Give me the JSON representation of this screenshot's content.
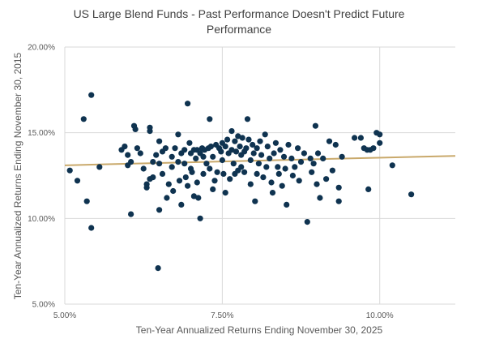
{
  "chart_data": {
    "type": "scatter",
    "title": "US Large Blend Funds - Past Performance Doesn't Predict Future Performance",
    "title_lines": [
      "US Large Blend Funds - Past Performance Doesn't Predict Future",
      "Performance"
    ],
    "xlabel": "Ten-Year Annualized Returns Ending November 30, 2025",
    "ylabel": "Ten-Year Annualized Returns Ending November 30, 2015",
    "xlim": [
      5.0,
      11.2
    ],
    "ylim": [
      5.0,
      20.0
    ],
    "x_ticks": [
      5.0,
      7.5,
      10.0
    ],
    "x_tick_labels": [
      "5.00%",
      "7.50%",
      "10.00%"
    ],
    "y_ticks": [
      5.0,
      10.0,
      15.0,
      20.0
    ],
    "y_tick_labels": [
      "5.00%",
      "10.00%",
      "15.00%",
      "20.00%"
    ],
    "grid": "vertical and horizontal",
    "point_color": "#0f3350",
    "trendline": {
      "type": "linear",
      "color": "#c9a96b",
      "x": [
        5.0,
        11.2
      ],
      "y": [
        13.1,
        13.65
      ]
    },
    "points": [
      [
        5.08,
        12.8
      ],
      [
        5.3,
        15.8
      ],
      [
        5.35,
        11.0
      ],
      [
        5.42,
        9.45
      ],
      [
        5.42,
        17.2
      ],
      [
        5.55,
        13.0
      ],
      [
        5.2,
        12.2
      ],
      [
        5.9,
        14.0
      ],
      [
        5.95,
        14.2
      ],
      [
        6.0,
        13.7
      ],
      [
        6.0,
        13.1
      ],
      [
        6.05,
        13.3
      ],
      [
        6.05,
        10.25
      ],
      [
        6.1,
        15.4
      ],
      [
        6.12,
        15.2
      ],
      [
        6.15,
        14.1
      ],
      [
        6.2,
        13.8
      ],
      [
        6.25,
        12.9
      ],
      [
        6.3,
        12.0
      ],
      [
        6.3,
        11.8
      ],
      [
        6.35,
        15.1
      ],
      [
        6.35,
        15.3
      ],
      [
        6.35,
        12.3
      ],
      [
        6.4,
        13.3
      ],
      [
        6.4,
        12.4
      ],
      [
        6.45,
        13.7
      ],
      [
        6.5,
        14.5
      ],
      [
        6.5,
        13.2
      ],
      [
        6.5,
        10.5
      ],
      [
        6.48,
        7.1
      ],
      [
        6.55,
        12.6
      ],
      [
        6.55,
        13.9
      ],
      [
        6.6,
        14.1
      ],
      [
        6.62,
        11.2
      ],
      [
        6.65,
        12.0
      ],
      [
        6.7,
        13.6
      ],
      [
        6.7,
        13.0
      ],
      [
        6.72,
        11.6
      ],
      [
        6.75,
        14.1
      ],
      [
        6.8,
        14.9
      ],
      [
        6.8,
        13.3
      ],
      [
        6.82,
        12.2
      ],
      [
        6.85,
        10.8
      ],
      [
        6.85,
        13.8
      ],
      [
        6.9,
        14.0
      ],
      [
        6.9,
        13.2
      ],
      [
        6.92,
        12.4
      ],
      [
        6.95,
        16.7
      ],
      [
        6.95,
        11.9
      ],
      [
        6.98,
        14.4
      ],
      [
        7.0,
        13.8
      ],
      [
        7.0,
        12.9
      ],
      [
        7.02,
        12.7
      ],
      [
        7.05,
        14.0
      ],
      [
        7.05,
        11.3
      ],
      [
        7.08,
        13.5
      ],
      [
        7.1,
        14.0
      ],
      [
        7.1,
        12.1
      ],
      [
        7.12,
        11.2
      ],
      [
        7.15,
        13.8
      ],
      [
        7.15,
        10.0
      ],
      [
        7.18,
        14.1
      ],
      [
        7.2,
        13.6
      ],
      [
        7.2,
        12.6
      ],
      [
        7.22,
        14.0
      ],
      [
        7.25,
        13.2
      ],
      [
        7.28,
        14.1
      ],
      [
        7.3,
        12.9
      ],
      [
        7.3,
        15.8
      ],
      [
        7.32,
        14.2
      ],
      [
        7.35,
        11.7
      ],
      [
        7.35,
        13.6
      ],
      [
        7.38,
        12.2
      ],
      [
        7.4,
        14.3
      ],
      [
        7.42,
        12.7
      ],
      [
        7.45,
        14.1
      ],
      [
        7.48,
        13.9
      ],
      [
        7.5,
        14.4
      ],
      [
        7.5,
        13.4
      ],
      [
        7.52,
        12.6
      ],
      [
        7.55,
        14.2
      ],
      [
        7.55,
        11.5
      ],
      [
        7.58,
        14.6
      ],
      [
        7.6,
        13.8
      ],
      [
        7.62,
        12.3
      ],
      [
        7.65,
        14.0
      ],
      [
        7.65,
        15.1
      ],
      [
        7.68,
        13.2
      ],
      [
        7.7,
        14.5
      ],
      [
        7.7,
        12.6
      ],
      [
        7.72,
        13.9
      ],
      [
        7.75,
        14.8
      ],
      [
        7.75,
        12.8
      ],
      [
        7.78,
        14.2
      ],
      [
        7.8,
        13.7
      ],
      [
        7.8,
        13.0
      ],
      [
        7.82,
        14.7
      ],
      [
        7.85,
        13.9
      ],
      [
        7.85,
        12.7
      ],
      [
        7.88,
        14.1
      ],
      [
        7.9,
        15.8
      ],
      [
        7.92,
        14.6
      ],
      [
        7.95,
        13.4
      ],
      [
        7.95,
        12.0
      ],
      [
        7.98,
        14.3
      ],
      [
        8.0,
        13.8
      ],
      [
        8.02,
        11.0
      ],
      [
        8.05,
        14.1
      ],
      [
        8.05,
        12.6
      ],
      [
        8.08,
        13.2
      ],
      [
        8.1,
        14.5
      ],
      [
        8.12,
        13.7
      ],
      [
        8.15,
        12.4
      ],
      [
        8.18,
        14.9
      ],
      [
        8.2,
        13.0
      ],
      [
        8.22,
        14.2
      ],
      [
        8.25,
        13.5
      ],
      [
        8.28,
        12.1
      ],
      [
        8.3,
        11.5
      ],
      [
        8.32,
        13.8
      ],
      [
        8.35,
        14.4
      ],
      [
        8.38,
        13.0
      ],
      [
        8.4,
        12.6
      ],
      [
        8.42,
        14.0
      ],
      [
        8.45,
        11.9
      ],
      [
        8.48,
        13.6
      ],
      [
        8.5,
        12.9
      ],
      [
        8.52,
        10.8
      ],
      [
        8.55,
        14.3
      ],
      [
        8.6,
        13.5
      ],
      [
        8.62,
        12.5
      ],
      [
        8.65,
        13.0
      ],
      [
        8.7,
        14.1
      ],
      [
        8.72,
        12.2
      ],
      [
        8.75,
        13.3
      ],
      [
        8.8,
        13.8
      ],
      [
        8.85,
        9.8
      ],
      [
        8.9,
        13.5
      ],
      [
        8.92,
        12.7
      ],
      [
        8.95,
        13.2
      ],
      [
        8.98,
        15.4
      ],
      [
        9.0,
        12.0
      ],
      [
        9.02,
        13.8
      ],
      [
        9.05,
        11.2
      ],
      [
        9.1,
        13.5
      ],
      [
        9.15,
        12.3
      ],
      [
        9.2,
        14.5
      ],
      [
        9.25,
        12.8
      ],
      [
        9.3,
        14.3
      ],
      [
        9.35,
        11.0
      ],
      [
        9.35,
        11.8
      ],
      [
        9.4,
        13.6
      ],
      [
        9.6,
        14.7
      ],
      [
        9.7,
        14.7
      ],
      [
        9.75,
        14.1
      ],
      [
        9.8,
        14.0
      ],
      [
        9.82,
        11.7
      ],
      [
        9.85,
        14.0
      ],
      [
        9.9,
        14.1
      ],
      [
        9.95,
        15.0
      ],
      [
        10.0,
        14.9
      ],
      [
        10.0,
        14.4
      ],
      [
        10.2,
        13.1
      ],
      [
        10.5,
        11.4
      ]
    ]
  }
}
